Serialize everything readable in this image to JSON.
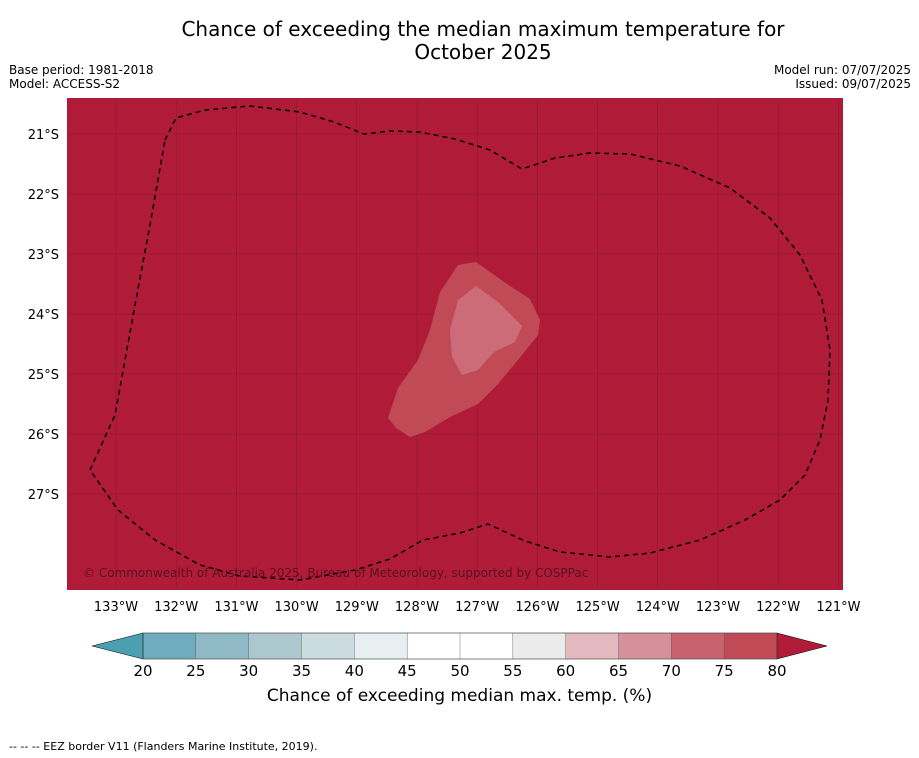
{
  "title_line1": "Chance of exceeding the median maximum temperature for",
  "title_line2": "October 2025",
  "base_period": "Base period: 1981-2018",
  "model": "Model: ACCESS-S2",
  "model_run": "Model run: 07/07/2025",
  "issued": "Issued: 09/07/2025",
  "copyright": "© Commonwealth of Australia 2025, Bureau of Meteorology, supported by COSPPac",
  "lon_labels": [
    "133°W",
    "132°W",
    "131°W",
    "130°W",
    "129°W",
    "128°W",
    "127°W",
    "126°W",
    "125°W",
    "124°W",
    "123°W",
    "122°W",
    "121°W"
  ],
  "lat_labels": [
    "21°S",
    "22°S",
    "23°S",
    "24°S",
    "25°S",
    "26°S",
    "27°S"
  ],
  "colorbar": {
    "ticks": [
      "20",
      "25",
      "30",
      "35",
      "40",
      "45",
      "50",
      "55",
      "60",
      "65",
      "70",
      "75",
      "80"
    ],
    "colors": [
      "#6dadbe",
      "#8fbac5",
      "#acc8ce",
      "#cbdce0",
      "#e8eff1",
      "#ffffff",
      "#ffffff",
      "#ebebeb",
      "#e3b9bf",
      "#d69099",
      "#c8626e",
      "#c04a56"
    ],
    "low_color": "#4aa0b0",
    "high_color": "#b01c38",
    "label": "Chance of exceeding median max. temp. (%)"
  },
  "field_color": "#b01c38",
  "contour_colors": {
    "c75": "#c04a56",
    "c70": "#cc6c78"
  },
  "footnote": "--  --  -- EEZ border V11 (Flanders Marine Institute, 2019)."
}
